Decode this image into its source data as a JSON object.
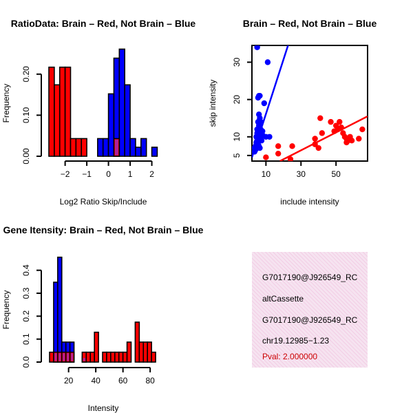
{
  "colors": {
    "brain": "#ff0000",
    "not_brain": "#0000ff",
    "overlap": "#b0209a",
    "pval_text": "#cc0000",
    "panel_bg": "#f6e3f0"
  },
  "chart_data": [
    {
      "id": "ratio_hist",
      "type": "bar",
      "title": "RatioData: Brain – Red, Not Brain – Blue",
      "xlabel": "Log2 Ratio Skip/Include",
      "ylabel": "Frequency",
      "xlim": [
        -2.75,
        2.3
      ],
      "ylim": [
        0,
        0.27
      ],
      "xticks": [
        -2,
        -1,
        0,
        1,
        2
      ],
      "xtick_labels": [
        "−2",
        "−1",
        "0",
        "1",
        "2"
      ],
      "yticks": [
        0.0,
        0.1,
        0.2
      ],
      "ytick_labels": [
        "0.00",
        "0.10",
        "0.20"
      ],
      "series": [
        {
          "name": "Brain",
          "color": "#ff0000",
          "bins": [
            [
              -2.75,
              -2.5,
              0.217
            ],
            [
              -2.5,
              -2.25,
              0.174
            ],
            [
              -2.25,
              -2.0,
              0.217
            ],
            [
              -2.0,
              -1.75,
              0.217
            ],
            [
              -1.75,
              -1.5,
              0.043
            ],
            [
              -1.5,
              -1.25,
              0.043
            ],
            [
              -1.25,
              -1.0,
              0.043
            ],
            [
              0.25,
              0.5,
              0.043
            ]
          ]
        },
        {
          "name": "Not Brain",
          "color": "#0000ff",
          "bins": [
            [
              -0.5,
              -0.25,
              0.043
            ],
            [
              -0.25,
              0.0,
              0.043
            ],
            [
              0.0,
              0.25,
              0.152
            ],
            [
              0.25,
              0.5,
              0.239
            ],
            [
              0.5,
              0.75,
              0.261
            ],
            [
              0.75,
              1.0,
              0.174
            ],
            [
              1.0,
              1.25,
              0.043
            ],
            [
              1.25,
              1.5,
              0.022
            ],
            [
              1.5,
              1.75,
              0.043
            ],
            [
              1.75,
              2.0,
              0.0
            ],
            [
              2.0,
              2.25,
              0.022
            ]
          ]
        }
      ]
    },
    {
      "id": "scatter",
      "type": "scatter",
      "title": "Brain – Red, Not Brain – Blue",
      "xlabel": "include intensity",
      "ylabel": "skip intensity",
      "xlim": [
        2,
        68
      ],
      "ylim": [
        3.5,
        34.5
      ],
      "xticks": [
        10,
        30,
        50
      ],
      "yticks": [
        5,
        10,
        20,
        30
      ],
      "series": [
        {
          "name": "Not Brain",
          "color": "#0000ff",
          "points": [
            [
              5,
              34
            ],
            [
              11,
              30
            ],
            [
              6,
              21
            ],
            [
              6.5,
              21
            ],
            [
              5.5,
              20.5
            ],
            [
              9,
              19
            ],
            [
              6,
              16
            ],
            [
              6.5,
              15
            ],
            [
              7,
              14
            ],
            [
              5.5,
              14
            ],
            [
              6,
              13
            ],
            [
              7,
              12
            ],
            [
              5,
              12
            ],
            [
              8,
              11.5
            ],
            [
              6.5,
              11
            ],
            [
              5,
              11
            ],
            [
              4.5,
              10
            ],
            [
              6,
              10
            ],
            [
              8,
              10.5
            ],
            [
              10,
              10
            ],
            [
              7,
              9.5
            ],
            [
              12,
              10
            ],
            [
              5,
              9
            ],
            [
              6,
              9
            ],
            [
              7.5,
              9
            ],
            [
              4.5,
              8.5
            ],
            [
              5.5,
              8
            ],
            [
              6,
              7.5
            ],
            [
              4,
              7.5
            ],
            [
              3.5,
              7
            ],
            [
              5,
              7
            ],
            [
              6.5,
              7
            ],
            [
              4,
              6.5
            ],
            [
              3.5,
              6
            ]
          ],
          "regression": [
            [
              2,
              4.5
            ],
            [
              25,
              38
            ]
          ]
        },
        {
          "name": "Brain",
          "color": "#ff0000",
          "points": [
            [
              10,
              4.5
            ],
            [
              17,
              7.5
            ],
            [
              17,
              5.5
            ],
            [
              25,
              7.5
            ],
            [
              24,
              4
            ],
            [
              38,
              9.5
            ],
            [
              38,
              8
            ],
            [
              40,
              7
            ],
            [
              42,
              11
            ],
            [
              41,
              15
            ],
            [
              47,
              14
            ],
            [
              49,
              11.5
            ],
            [
              50,
              13
            ],
            [
              51,
              12
            ],
            [
              53,
              12.5
            ],
            [
              54,
              11
            ],
            [
              55,
              10
            ],
            [
              56,
              9.5
            ],
            [
              57,
              9
            ],
            [
              58,
              10
            ],
            [
              59,
              9
            ],
            [
              63,
              9.5
            ],
            [
              65,
              12
            ],
            [
              56,
              8.5
            ],
            [
              52,
              14
            ]
          ],
          "regression": [
            [
              18,
              3.5
            ],
            [
              68,
              15.5
            ]
          ]
        }
      ]
    },
    {
      "id": "intensity_hist",
      "type": "bar",
      "title": "Gene Itensity: Brain – Red, Not Brain – Blue",
      "xlabel": "Intensity",
      "ylabel": "Frequency",
      "xlim": [
        5.5,
        86
      ],
      "ylim": [
        0,
        0.48
      ],
      "xticks": [
        20,
        40,
        60,
        80
      ],
      "yticks": [
        0.0,
        0.1,
        0.2,
        0.3,
        0.4
      ],
      "ytick_labels": [
        "0.0",
        "0.1",
        "0.2",
        "0.3",
        "0.4"
      ],
      "series": [
        {
          "name": "Brain",
          "color": "#ff0000",
          "bins": [
            [
              6,
              9,
              0.043
            ],
            [
              9,
              12,
              0.043
            ],
            [
              12,
              15,
              0.043
            ],
            [
              15,
              18,
              0.043
            ],
            [
              18,
              21,
              0.043
            ],
            [
              21,
              24,
              0.043
            ],
            [
              30,
              33,
              0.043
            ],
            [
              33,
              36,
              0.043
            ],
            [
              36,
              39,
              0.043
            ],
            [
              39,
              42,
              0.13
            ],
            [
              45,
              48,
              0.043
            ],
            [
              48,
              51,
              0.043
            ],
            [
              51,
              54,
              0.043
            ],
            [
              54,
              57,
              0.043
            ],
            [
              57,
              60,
              0.043
            ],
            [
              60,
              63,
              0.043
            ],
            [
              63,
              66,
              0.087
            ],
            [
              66,
              69,
              0.0
            ],
            [
              69,
              72,
              0.174
            ],
            [
              72,
              75,
              0.087
            ],
            [
              75,
              78,
              0.087
            ],
            [
              78,
              81,
              0.087
            ],
            [
              81,
              84,
              0.043
            ]
          ]
        },
        {
          "name": "Not Brain",
          "color": "#0000ff",
          "bins": [
            [
              9,
              12,
              0.348
            ],
            [
              12,
              15,
              0.457
            ],
            [
              15,
              18,
              0.087
            ],
            [
              18,
              21,
              0.087
            ],
            [
              21,
              24,
              0.087
            ],
            [
              30,
              33,
              0.022
            ]
          ]
        }
      ]
    }
  ],
  "info": {
    "id_line_1": "G7017190@J926549_RC",
    "event_type": "altCassette",
    "id_line_2": "G7017190@J926549_RC",
    "location": "chr19.12985−1.23",
    "pval": "Pval: 2.000000"
  }
}
